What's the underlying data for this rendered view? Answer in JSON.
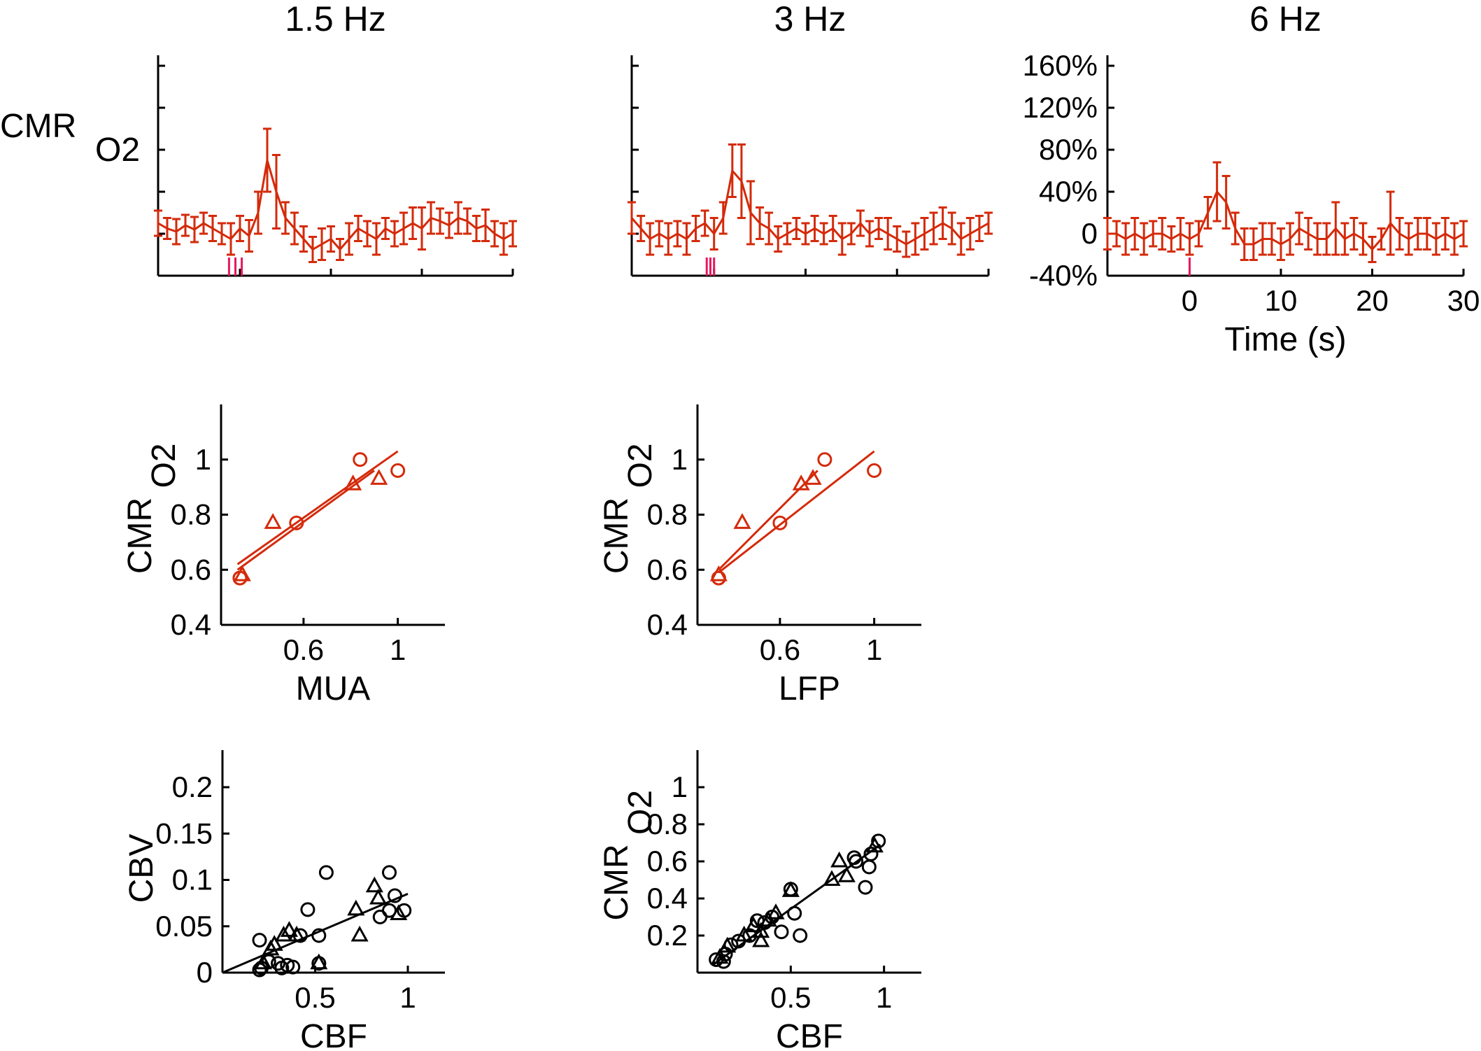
{
  "colors": {
    "series_red": "#d42a0a",
    "stimulus_pink": "#e8175d",
    "axis_black": "#000000",
    "scatter_black": "#000000"
  },
  "chart_data": [
    {
      "id": "timecourse-1p5hz",
      "type": "line",
      "title": "1.5 Hz",
      "ylabel": "CMR",
      "ylabel_sub": "O2",
      "xlabel": "",
      "xlim": [
        -9,
        30
      ],
      "ylim": [
        -40,
        170
      ],
      "x_ticks": [
        -9,
        0,
        10,
        20,
        30
      ],
      "y_ticks": [
        -40,
        0,
        40,
        80,
        120,
        160
      ],
      "show_tick_labels": false,
      "stimulus_marks": [
        -1.2,
        -0.5,
        0.2
      ],
      "x": [
        -9,
        -8,
        -7,
        -6,
        -5,
        -4,
        -3,
        -2,
        -1,
        0,
        1,
        2,
        3,
        4,
        5,
        6,
        7,
        8,
        9,
        10,
        11,
        12,
        13,
        14,
        15,
        16,
        17,
        18,
        19,
        20,
        21,
        22,
        23,
        24,
        25,
        26,
        27,
        28,
        29,
        30
      ],
      "y": [
        10,
        5,
        2,
        8,
        4,
        10,
        5,
        0,
        -5,
        5,
        -2,
        20,
        70,
        40,
        15,
        5,
        -5,
        -15,
        -10,
        -5,
        -15,
        -5,
        5,
        0,
        -5,
        5,
        0,
        5,
        10,
        5,
        15,
        12,
        8,
        15,
        12,
        5,
        8,
        0,
        -5,
        0
      ],
      "err": [
        12,
        10,
        12,
        10,
        12,
        10,
        12,
        10,
        15,
        12,
        15,
        20,
        30,
        35,
        15,
        15,
        12,
        12,
        15,
        12,
        10,
        15,
        12,
        12,
        15,
        10,
        12,
        15,
        15,
        20,
        15,
        12,
        12,
        15,
        12,
        12,
        15,
        12,
        15,
        12
      ]
    },
    {
      "id": "timecourse-3hz",
      "type": "line",
      "title": "3 Hz",
      "ylabel": "",
      "xlabel": "",
      "xlim": [
        -9,
        30
      ],
      "ylim": [
        -40,
        170
      ],
      "x_ticks": [
        -9,
        0,
        10,
        20,
        30
      ],
      "y_ticks": [
        -40,
        0,
        40,
        80,
        120,
        160
      ],
      "show_tick_labels": false,
      "stimulus_marks": [
        -0.8,
        -0.4,
        0
      ],
      "x": [
        -9,
        -8,
        -7,
        -6,
        -5,
        -4,
        -3,
        -2,
        -1,
        0,
        1,
        2,
        3,
        4,
        5,
        6,
        7,
        8,
        9,
        10,
        11,
        12,
        13,
        14,
        15,
        16,
        17,
        18,
        19,
        20,
        21,
        22,
        23,
        24,
        25,
        26,
        27,
        28,
        29,
        30
      ],
      "y": [
        15,
        5,
        -5,
        0,
        -5,
        0,
        -5,
        5,
        10,
        0,
        15,
        60,
        50,
        20,
        10,
        5,
        -5,
        0,
        5,
        0,
        5,
        0,
        5,
        -5,
        0,
        10,
        0,
        5,
        0,
        -5,
        -10,
        -5,
        0,
        5,
        10,
        5,
        -5,
        0,
        5,
        10
      ],
      "err": [
        15,
        12,
        15,
        12,
        15,
        12,
        15,
        12,
        12,
        15,
        15,
        25,
        35,
        30,
        15,
        15,
        12,
        10,
        10,
        10,
        12,
        10,
        12,
        15,
        10,
        12,
        12,
        10,
        15,
        12,
        12,
        15,
        15,
        15,
        15,
        15,
        15,
        15,
        12,
        10
      ]
    },
    {
      "id": "timecourse-6hz",
      "type": "line",
      "title": "6 Hz",
      "ylabel": "",
      "xlabel": "Time (s)",
      "xlim": [
        -9,
        30
      ],
      "ylim": [
        -40,
        170
      ],
      "x_ticks": [
        0,
        10,
        20,
        30
      ],
      "x_tick_labels": [
        "0",
        "10",
        "20",
        "30"
      ],
      "y_ticks": [
        -40,
        0,
        40,
        80,
        120,
        160
      ],
      "y_tick_labels": [
        "-40%",
        "0",
        "40%",
        "80%",
        "120%",
        "160%"
      ],
      "show_tick_labels": true,
      "stimulus_marks": [
        0
      ],
      "x": [
        -9,
        -8,
        -7,
        -6,
        -5,
        -4,
        -3,
        -2,
        -1,
        0,
        1,
        2,
        3,
        4,
        5,
        6,
        7,
        8,
        9,
        10,
        11,
        12,
        13,
        14,
        15,
        16,
        17,
        18,
        19,
        20,
        21,
        22,
        23,
        24,
        25,
        26,
        27,
        28,
        29,
        30
      ],
      "y": [
        0,
        0,
        -5,
        0,
        -5,
        0,
        0,
        -5,
        0,
        -5,
        0,
        20,
        40,
        30,
        5,
        -10,
        -10,
        -5,
        -5,
        -10,
        -5,
        5,
        0,
        -5,
        -5,
        5,
        -5,
        0,
        -5,
        -15,
        -5,
        10,
        0,
        -5,
        0,
        0,
        -5,
        0,
        -5,
        0
      ],
      "err": [
        15,
        12,
        15,
        15,
        15,
        12,
        15,
        12,
        15,
        15,
        12,
        15,
        28,
        25,
        15,
        15,
        15,
        15,
        15,
        15,
        15,
        15,
        15,
        15,
        15,
        25,
        15,
        15,
        15,
        12,
        10,
        30,
        15,
        15,
        15,
        15,
        15,
        15,
        15,
        12
      ]
    },
    {
      "id": "scatter-mua",
      "type": "scatter",
      "title": "",
      "xlabel": "MUA",
      "ylabel": "CMR",
      "ylabel_sub": "O2",
      "xlim": [
        0.25,
        1.2
      ],
      "ylim": [
        0.4,
        1.2
      ],
      "x_ticks": [
        0.6,
        1
      ],
      "x_tick_labels": [
        "0.6",
        "1"
      ],
      "y_ticks": [
        0.4,
        0.6,
        0.8,
        1
      ],
      "y_tick_labels": [
        "0.4",
        "0.6",
        "0.8",
        "1"
      ],
      "circles": [
        [
          0.33,
          0.57
        ],
        [
          0.33,
          0.57
        ],
        [
          0.57,
          0.77
        ],
        [
          0.84,
          1.0
        ],
        [
          1.0,
          0.96
        ]
      ],
      "triangles": [
        [
          0.34,
          0.58
        ],
        [
          0.47,
          0.77
        ],
        [
          0.81,
          0.91
        ],
        [
          0.92,
          0.93
        ]
      ],
      "fit_lines": [
        [
          [
            0.32,
            0.62
          ],
          [
            1.0,
            1.03
          ]
        ],
        [
          [
            0.32,
            0.6
          ],
          [
            0.9,
            0.96
          ]
        ]
      ]
    },
    {
      "id": "scatter-lfp",
      "type": "scatter",
      "title": "",
      "xlabel": "LFP",
      "ylabel": "CMR",
      "ylabel_sub": "O2",
      "xlim": [
        0.25,
        1.2
      ],
      "ylim": [
        0.4,
        1.2
      ],
      "x_ticks": [
        0.6,
        1
      ],
      "x_tick_labels": [
        "0.6",
        "1"
      ],
      "y_ticks": [
        0.4,
        0.6,
        0.8,
        1
      ],
      "y_tick_labels": [
        "0.4",
        "0.6",
        "0.8",
        "1"
      ],
      "circles": [
        [
          0.34,
          0.57
        ],
        [
          0.34,
          0.57
        ],
        [
          0.6,
          0.77
        ],
        [
          0.79,
          1.0
        ],
        [
          1.0,
          0.96
        ]
      ],
      "triangles": [
        [
          0.34,
          0.58
        ],
        [
          0.44,
          0.77
        ],
        [
          0.69,
          0.91
        ],
        [
          0.74,
          0.93
        ]
      ],
      "fit_lines": [
        [
          [
            0.34,
            0.59
          ],
          [
            1.0,
            1.03
          ]
        ],
        [
          [
            0.34,
            0.6
          ],
          [
            0.76,
            0.96
          ]
        ]
      ]
    },
    {
      "id": "scatter-cbv-cbf",
      "type": "scatter",
      "title": "",
      "xlabel": "CBF",
      "ylabel": "CBV",
      "xlim": [
        0,
        1.2
      ],
      "ylim": [
        0,
        0.24
      ],
      "x_ticks": [
        0.5,
        1
      ],
      "x_tick_labels": [
        "0.5",
        "1"
      ],
      "y_ticks": [
        0,
        0.05,
        0.1,
        0.15,
        0.2
      ],
      "y_tick_labels": [
        "0",
        "0.05",
        "0.1",
        "0.15",
        "0.2"
      ],
      "circles": [
        [
          0.2,
          0.035
        ],
        [
          0.21,
          0.005
        ],
        [
          0.25,
          0.012
        ],
        [
          0.3,
          0.01
        ],
        [
          0.32,
          0.005
        ],
        [
          0.35,
          0.008
        ],
        [
          0.38,
          0.006
        ],
        [
          0.42,
          0.04
        ],
        [
          0.46,
          0.068
        ],
        [
          0.52,
          0.04
        ],
        [
          0.52,
          0.01
        ],
        [
          0.56,
          0.108
        ],
        [
          0.85,
          0.06
        ],
        [
          0.9,
          0.108
        ],
        [
          0.9,
          0.067
        ],
        [
          0.93,
          0.083
        ],
        [
          0.98,
          0.067
        ],
        [
          0.2,
          0.003
        ]
      ],
      "triangles": [
        [
          0.22,
          0.01
        ],
        [
          0.26,
          0.025
        ],
        [
          0.28,
          0.03
        ],
        [
          0.33,
          0.04
        ],
        [
          0.36,
          0.045
        ],
        [
          0.4,
          0.04
        ],
        [
          0.52,
          0.01
        ],
        [
          0.72,
          0.068
        ],
        [
          0.74,
          0.04
        ],
        [
          0.82,
          0.093
        ],
        [
          0.84,
          0.08
        ],
        [
          0.95,
          0.063
        ]
      ],
      "fit_lines": [
        [
          [
            0,
            0
          ],
          [
            1.0,
            0.085
          ]
        ]
      ]
    },
    {
      "id": "scatter-cmro2-cbf",
      "type": "scatter",
      "title": "",
      "xlabel": "CBF",
      "ylabel": "CMR",
      "ylabel_sub": "O2",
      "xlim": [
        0,
        1.2
      ],
      "ylim": [
        0,
        1.2
      ],
      "x_ticks": [
        0.5,
        1
      ],
      "x_tick_labels": [
        "0.5",
        "1"
      ],
      "y_ticks": [
        0.2,
        0.4,
        0.6,
        0.8,
        1
      ],
      "y_tick_labels": [
        "0.2",
        "0.4",
        "0.6",
        "0.8",
        "1"
      ],
      "circles": [
        [
          0.1,
          0.07
        ],
        [
          0.14,
          0.06
        ],
        [
          0.18,
          0.15
        ],
        [
          0.22,
          0.17
        ],
        [
          0.28,
          0.2
        ],
        [
          0.32,
          0.28
        ],
        [
          0.36,
          0.27
        ],
        [
          0.4,
          0.3
        ],
        [
          0.45,
          0.22
        ],
        [
          0.5,
          0.45
        ],
        [
          0.52,
          0.32
        ],
        [
          0.55,
          0.2
        ],
        [
          0.84,
          0.62
        ],
        [
          0.9,
          0.46
        ],
        [
          0.92,
          0.57
        ],
        [
          0.93,
          0.64
        ],
        [
          0.97,
          0.71
        ],
        [
          0.85,
          0.6
        ],
        [
          0.15,
          0.1
        ]
      ],
      "triangles": [
        [
          0.12,
          0.08
        ],
        [
          0.16,
          0.14
        ],
        [
          0.25,
          0.2
        ],
        [
          0.3,
          0.25
        ],
        [
          0.34,
          0.22
        ],
        [
          0.34,
          0.17
        ],
        [
          0.38,
          0.28
        ],
        [
          0.42,
          0.32
        ],
        [
          0.5,
          0.44
        ],
        [
          0.72,
          0.5
        ],
        [
          0.76,
          0.6
        ],
        [
          0.8,
          0.52
        ],
        [
          0.95,
          0.68
        ]
      ],
      "fit_lines": [
        [
          [
            0.08,
            0.04
          ],
          [
            0.98,
            0.69
          ]
        ]
      ]
    }
  ]
}
